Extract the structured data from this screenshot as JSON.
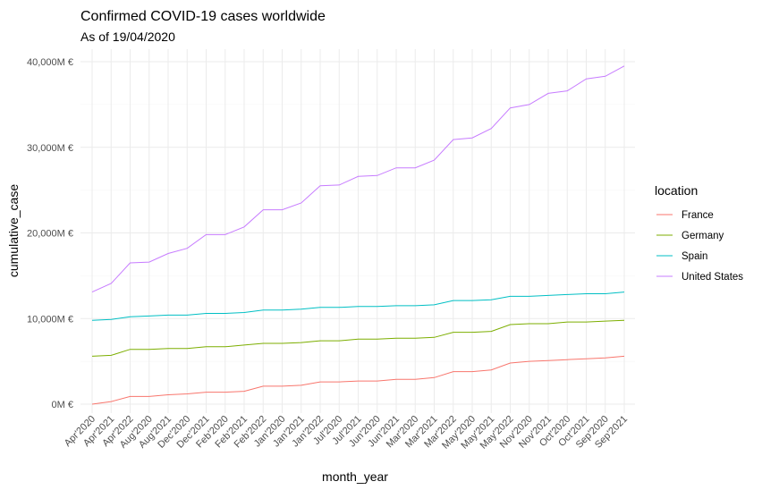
{
  "chart_data": {
    "type": "line",
    "title": "Confirmed COVID-19 cases worldwide",
    "subtitle": "As of 19/04/2020",
    "xlabel": "month_year",
    "ylabel": "cumulative_case",
    "ylim": [
      0,
      40000
    ],
    "yticks": [
      0,
      10000,
      20000,
      30000,
      40000
    ],
    "ytick_labels": [
      "0M €",
      "10,000M €",
      "20,000M €",
      "30,000M €",
      "40,000M €"
    ],
    "grid": true,
    "legend_title": "location",
    "legend_position": "right",
    "categories": [
      "Apr'2020",
      "Apr'2021",
      "Apr'2022",
      "Aug'2020",
      "Aug'2021",
      "Dec'2020",
      "Dec'2021",
      "Feb'2020",
      "Feb'2021",
      "Feb'2022",
      "Jan'2020",
      "Jan'2021",
      "Jan'2022",
      "Jul'2020",
      "Jul'2021",
      "Jun'2020",
      "Jun'2021",
      "Mar'2020",
      "Mar'2021",
      "Mar'2022",
      "May'2020",
      "May'2021",
      "May'2022",
      "Nov'2020",
      "Nov'2021",
      "Oct'2020",
      "Oct'2021",
      "Sep'2020",
      "Sep'2021"
    ],
    "series": [
      {
        "name": "France",
        "color": "#F8766D",
        "values": [
          0,
          300,
          900,
          900,
          1100,
          1200,
          1400,
          1400,
          1500,
          2100,
          2100,
          2200,
          2600,
          2600,
          2700,
          2700,
          2900,
          2900,
          3100,
          3800,
          3800,
          4000,
          4800,
          5000,
          5100,
          5200,
          5300,
          5400,
          5600
        ]
      },
      {
        "name": "Germany",
        "color": "#7CAE00",
        "values": [
          5600,
          5700,
          6400,
          6400,
          6500,
          6500,
          6700,
          6700,
          6900,
          7100,
          7100,
          7200,
          7400,
          7400,
          7600,
          7600,
          7700,
          7700,
          7800,
          8400,
          8400,
          8500,
          9300,
          9400,
          9400,
          9600,
          9600,
          9700,
          9800
        ]
      },
      {
        "name": "Spain",
        "color": "#00BFC4",
        "values": [
          9800,
          9900,
          10200,
          10300,
          10400,
          10400,
          10600,
          10600,
          10700,
          11000,
          11000,
          11100,
          11300,
          11300,
          11400,
          11400,
          11500,
          11500,
          11600,
          12100,
          12100,
          12200,
          12600,
          12600,
          12700,
          12800,
          12900,
          12900,
          13100
        ]
      },
      {
        "name": "United States",
        "color": "#C77CFF",
        "values": [
          13100,
          14100,
          16500,
          16600,
          17600,
          18200,
          19800,
          19800,
          20700,
          22700,
          22700,
          23500,
          25500,
          25600,
          26600,
          26700,
          27600,
          27600,
          28500,
          30900,
          31100,
          32200,
          34600,
          35000,
          36300,
          36600,
          38000,
          38300,
          39500
        ]
      }
    ]
  }
}
